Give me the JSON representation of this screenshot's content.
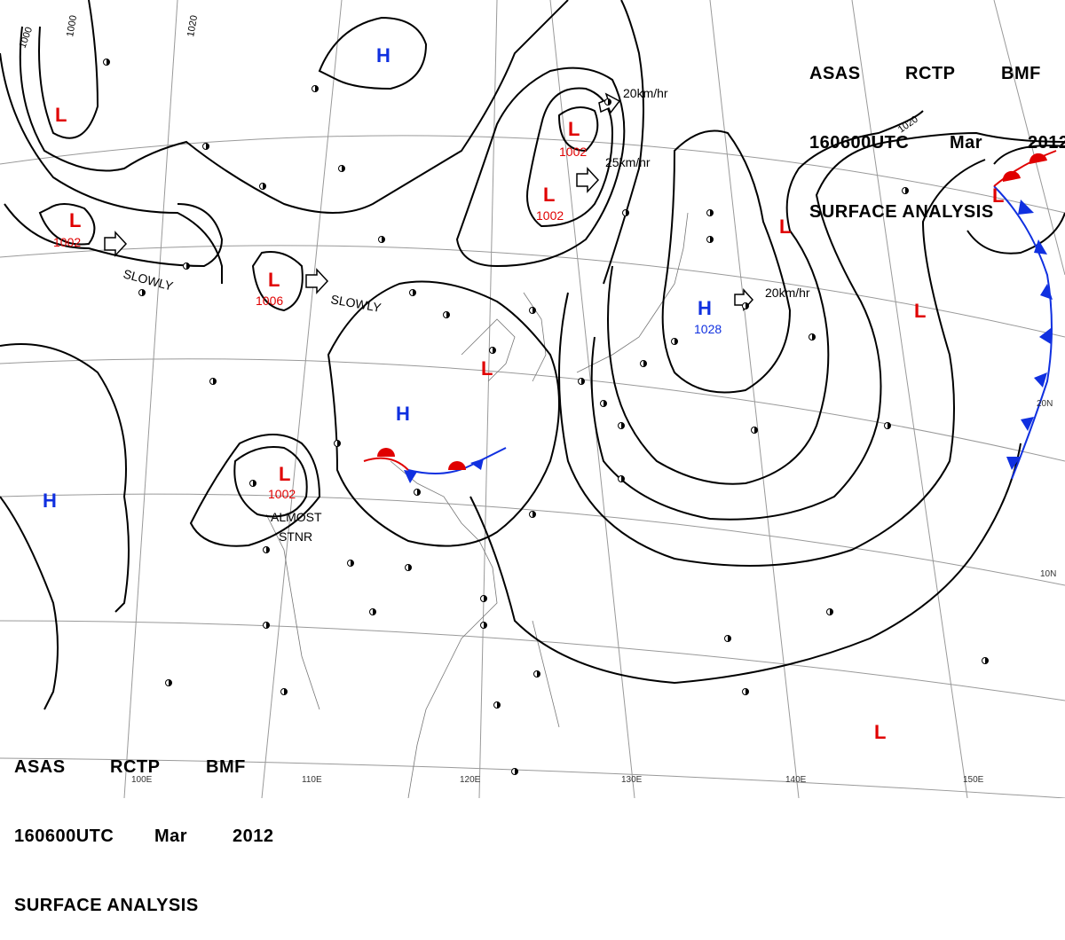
{
  "header": {
    "agency": "ASAS",
    "station": "RCTP",
    "code": "BMF",
    "time": "160600UTC",
    "month": "Mar",
    "year": "2012",
    "title": "SURFACE ANALYSIS"
  },
  "colors": {
    "low": "#e00000",
    "high": "#1030e0",
    "isobar": "#000000",
    "grid": "#999999",
    "warm_front": "#e00000",
    "cold_front": "#1030e0"
  },
  "isobar_labels": [
    "1000",
    "1000",
    "1020",
    "1020"
  ],
  "lows": [
    {
      "letter": "L",
      "pressure": ""
    },
    {
      "letter": "L",
      "pressure": "1002"
    },
    {
      "letter": "L",
      "pressure": "1002"
    },
    {
      "letter": "L",
      "pressure": "1002"
    },
    {
      "letter": "L",
      "pressure": "1006"
    },
    {
      "letter": "L",
      "pressure": ""
    },
    {
      "letter": "L",
      "pressure": "1002"
    },
    {
      "letter": "L",
      "pressure": ""
    },
    {
      "letter": "L",
      "pressure": ""
    },
    {
      "letter": "L",
      "pressure": ""
    },
    {
      "letter": "L",
      "pressure": ""
    }
  ],
  "highs": [
    {
      "letter": "H",
      "pressure": ""
    },
    {
      "letter": "H",
      "pressure": "1028"
    },
    {
      "letter": "H",
      "pressure": ""
    },
    {
      "letter": "H",
      "pressure": ""
    }
  ],
  "motions": [
    "20km/hr",
    "25km/hr",
    "20km/hr",
    "SLOWLY",
    "SLOWLY",
    "ALMOST",
    "STNR"
  ],
  "longitudes": [
    "100E",
    "110E",
    "120E",
    "130E",
    "140E",
    "150E"
  ],
  "latitudes": [
    "20N",
    "10N"
  ]
}
